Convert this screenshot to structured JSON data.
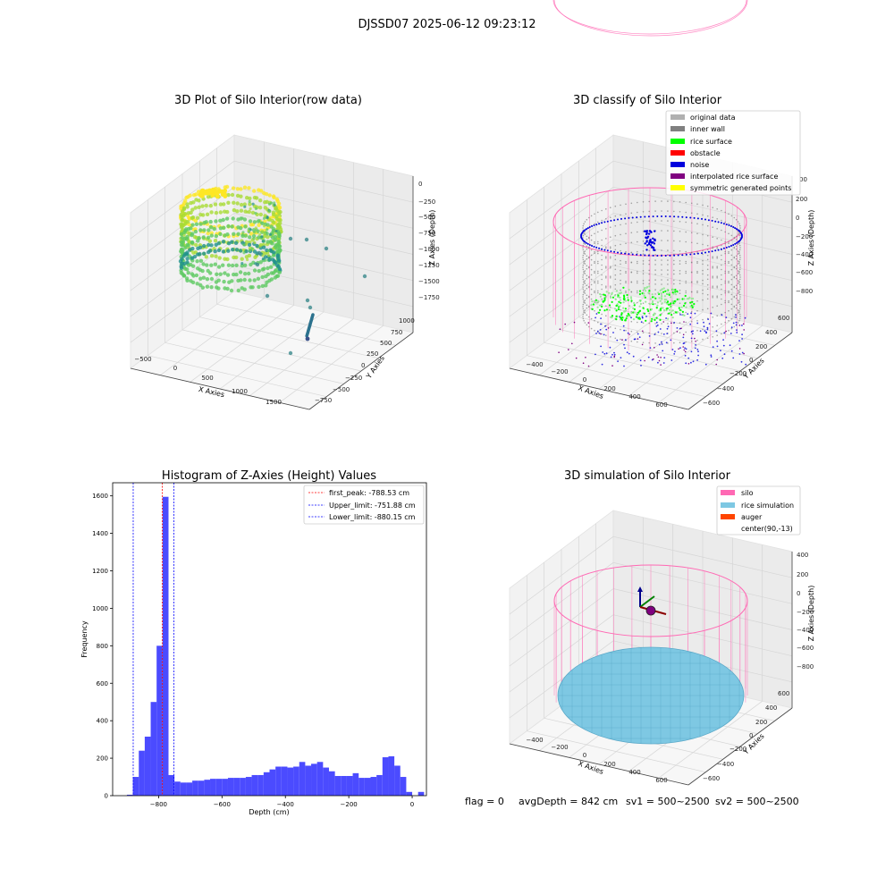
{
  "suptitle": "DJSSD07 2025-06-12 09:23:12",
  "footer": {
    "flag": "flag = 0",
    "avg_depth": "avgDepth = 842 cm",
    "sv1": "sv1 = 500~2500",
    "sv2": "sv2 = 500~2500"
  },
  "colors": {
    "hist_bar": "#4b4bff",
    "peak_line": "#ff0000",
    "limit_line": "#0000ff",
    "silo": "#ff69b4",
    "rice_sim": "#7ec8e3",
    "auger": "#ff4500",
    "original": "#b0b0b0",
    "inner_wall": "#808080",
    "rice_surface": "#00ff00",
    "obstacle": "#ff0000",
    "noise": "#0000dd",
    "interp": "#800080",
    "symmetric": "#ffff00"
  },
  "chart_data": [
    {
      "id": "raw",
      "type": "scatter",
      "title": "3D Plot of Silo Interior(row data)",
      "xlabel": "X Axies",
      "ylabel": "Y Axies",
      "zlabel": "Z Axies (Depth)",
      "x_ticks": [
        "−500",
        "0",
        "500",
        "1000",
        "1500"
      ],
      "y_ticks": [
        "−750",
        "−500",
        "−250",
        "0",
        "250",
        "500",
        "750",
        "1000"
      ],
      "z_ticks": [
        "0",
        "−250",
        "−500",
        "−750",
        "−1000",
        "−1250",
        "−1500",
        "−1750"
      ]
    },
    {
      "id": "classify",
      "type": "scatter",
      "title": "3D classify of Silo Interior",
      "xlabel": "X Axies",
      "ylabel": "Y Axies",
      "zlabel": "Z Axies (Depth)",
      "x_ticks": [
        "−400",
        "−200",
        "0",
        "200",
        "400",
        "600"
      ],
      "y_ticks": [
        "−600",
        "−400",
        "−200",
        "0",
        "200",
        "400",
        "600"
      ],
      "z_ticks": [
        "200",
        "0",
        "−200",
        "−400",
        "−600",
        "−800"
      ],
      "z_top_partial": "00",
      "legend": [
        "original data",
        "inner wall",
        "rice surface",
        "obstacle",
        "noise",
        "interpolated rice surface",
        "symmetric generated points"
      ]
    },
    {
      "id": "hist",
      "type": "bar",
      "title": "Histogram of Z-Axies (Height) Values",
      "xlabel": "Depth (cm)",
      "ylabel": "Frequency",
      "xlim": [
        -945,
        45
      ],
      "ylim": [
        0,
        1670
      ],
      "x_ticks": [
        -800,
        -600,
        -400,
        -200,
        0
      ],
      "x_tick_labels": [
        "−800",
        "−600",
        "−400",
        "−200",
        "0"
      ],
      "y_ticks": [
        0,
        200,
        400,
        600,
        800,
        1000,
        1200,
        1400,
        1600
      ],
      "y_tick_labels": [
        "0",
        "200",
        "400",
        "600",
        "800",
        "1000",
        "1200",
        "1400",
        "1600"
      ],
      "bin_start": -900,
      "bin_width": 18.75,
      "values": [
        5,
        100,
        240,
        315,
        500,
        800,
        1595,
        110,
        75,
        70,
        70,
        80,
        80,
        85,
        90,
        90,
        90,
        95,
        95,
        95,
        100,
        110,
        110,
        125,
        140,
        155,
        155,
        150,
        155,
        180,
        160,
        170,
        180,
        150,
        130,
        105,
        105,
        105,
        120,
        95,
        95,
        100,
        110,
        205,
        210,
        160,
        100,
        20,
        0,
        20
      ],
      "lines": [
        {
          "label": "first_peak: -788.53 cm",
          "x": -788.53,
          "style": "peak"
        },
        {
          "label": "Upper_limit: -751.88 cm",
          "x": -751.88,
          "style": "limit"
        },
        {
          "label": "Lower_limit: -880.15 cm",
          "x": -880.15,
          "style": "limit"
        }
      ]
    },
    {
      "id": "sim",
      "type": "scatter",
      "title": "3D simulation of Silo Interior",
      "xlabel": "X Axies",
      "ylabel": "Y Axies",
      "zlabel": "Z Axies (Depth)",
      "x_ticks": [
        "−400",
        "−200",
        "0",
        "200",
        "400",
        "600"
      ],
      "y_ticks": [
        "−600",
        "−400",
        "−200",
        "0",
        "200",
        "400",
        "600"
      ],
      "z_ticks": [
        "400",
        "200",
        "0",
        "−200",
        "−400",
        "−600",
        "−800"
      ],
      "legend": [
        "silo",
        "rice simulation",
        "auger",
        "center(90,-13)"
      ]
    }
  ]
}
